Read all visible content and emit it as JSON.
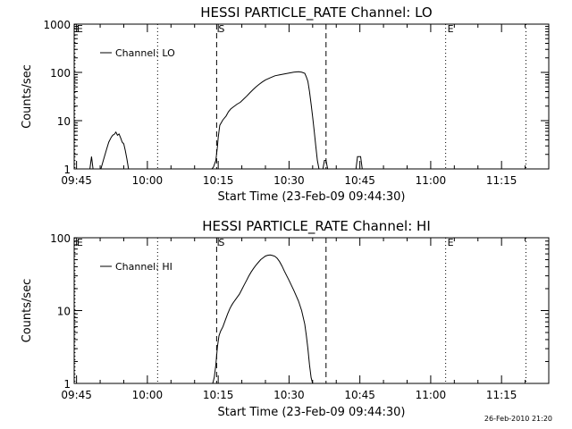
{
  "chart_data": [
    {
      "type": "line",
      "title": "HESSI PARTICLE_RATE Channel: LO",
      "xlabel": "Start Time (23-Feb-09 09:44:30)",
      "ylabel": "Counts/sec",
      "yscale": "log",
      "ylim": [
        1,
        1000
      ],
      "xlim": [
        "09:44:30",
        "11:25:00"
      ],
      "x_ticks": [
        "09:45",
        "10:00",
        "10:15",
        "10:30",
        "10:45",
        "11:00",
        "11:15"
      ],
      "y_ticks": [
        "1",
        "10",
        "100",
        "1000"
      ],
      "legend": {
        "label": "Channel: LO",
        "position": "top-left"
      },
      "markers": [
        {
          "time": "09:44:40",
          "label": "E",
          "style": "dotted"
        },
        {
          "time": "10:02:10",
          "label": "",
          "style": "dotted"
        },
        {
          "time": "10:14:40",
          "label": "S",
          "style": "dashed"
        },
        {
          "time": "10:37:50",
          "label": "",
          "style": "dashed"
        },
        {
          "time": "11:03:10",
          "label": "E",
          "style": "dotted"
        },
        {
          "time": "11:20:10",
          "label": "",
          "style": "dotted"
        }
      ],
      "series": [
        {
          "name": "Channel: LO",
          "segments": [
            [
              [
                "09:47:50",
                0.8
              ],
              [
                "09:48:10",
                1.8
              ],
              [
                "09:48:30",
                0.8
              ]
            ],
            [
              [
                "09:50:10",
                0.8
              ],
              [
                "09:50:40",
                1.5
              ],
              [
                "09:51:20",
                2.5
              ],
              [
                "09:51:50",
                3.6
              ],
              [
                "09:52:20",
                4.5
              ],
              [
                "09:52:40",
                5.0
              ],
              [
                "09:53:00",
                5.2
              ],
              [
                "09:53:20",
                5.8
              ],
              [
                "09:53:40",
                5.0
              ],
              [
                "09:54:00",
                5.3
              ],
              [
                "09:54:20",
                4.4
              ],
              [
                "09:54:40",
                3.6
              ],
              [
                "09:55:00",
                3.3
              ],
              [
                "09:55:20",
                2.4
              ],
              [
                "09:55:40",
                1.6
              ],
              [
                "09:56:00",
                0.8
              ]
            ],
            [
              [
                "10:13:40",
                0.8
              ],
              [
                "10:14:00",
                1.1
              ],
              [
                "10:14:30",
                1.5
              ],
              [
                "10:14:50",
                2.9
              ],
              [
                "10:15:00",
                4.4
              ],
              [
                "10:15:20",
                8.0
              ],
              [
                "10:16:00",
                10.4
              ],
              [
                "10:16:40",
                12.5
              ],
              [
                "10:17:10",
                15.3
              ],
              [
                "10:17:40",
                17.5
              ],
              [
                "10:18:20",
                19.7
              ],
              [
                "10:19:00",
                22.0
              ],
              [
                "10:19:40",
                24.0
              ],
              [
                "10:20:20",
                27.7
              ],
              [
                "10:21:00",
                32.0
              ],
              [
                "10:21:40",
                37.5
              ],
              [
                "10:22:20",
                43.5
              ],
              [
                "10:23:00",
                50.0
              ],
              [
                "10:23:40",
                56.5
              ],
              [
                "10:24:20",
                63.5
              ],
              [
                "10:25:00",
                70.0
              ],
              [
                "10:26:00",
                77.0
              ],
              [
                "10:27:00",
                85.0
              ],
              [
                "10:28:00",
                89.0
              ],
              [
                "10:29:00",
                93.0
              ],
              [
                "10:30:00",
                97.0
              ],
              [
                "10:31:00",
                101.0
              ],
              [
                "10:32:00",
                103.0
              ],
              [
                "10:32:40",
                101.0
              ],
              [
                "10:33:20",
                96.0
              ],
              [
                "10:33:40",
                80.0
              ],
              [
                "10:34:00",
                65.0
              ],
              [
                "10:34:20",
                40.0
              ],
              [
                "10:34:40",
                22.0
              ],
              [
                "10:35:00",
                12.0
              ],
              [
                "10:35:20",
                6.0
              ],
              [
                "10:35:40",
                3.0
              ],
              [
                "10:36:00",
                1.5
              ],
              [
                "10:36:20",
                0.8
              ]
            ],
            [
              [
                "10:37:10",
                0.8
              ],
              [
                "10:37:30",
                1.5
              ],
              [
                "10:37:50",
                1.5
              ],
              [
                "10:38:10",
                0.8
              ]
            ],
            [
              [
                "10:44:10",
                0.8
              ],
              [
                "10:44:30",
                1.8
              ],
              [
                "10:45:10",
                1.8
              ],
              [
                "10:45:30",
                0.8
              ]
            ]
          ]
        }
      ]
    },
    {
      "type": "line",
      "title": "HESSI PARTICLE_RATE Channel: HI",
      "xlabel": "Start Time (23-Feb-09 09:44:30)",
      "ylabel": "Counts/sec",
      "yscale": "log",
      "ylim": [
        1,
        100
      ],
      "xlim": [
        "09:44:30",
        "11:25:00"
      ],
      "x_ticks": [
        "09:45",
        "10:00",
        "10:15",
        "10:30",
        "10:45",
        "11:00",
        "11:15"
      ],
      "y_ticks": [
        "1",
        "10",
        "100"
      ],
      "legend": {
        "label": "Channel: HI",
        "position": "top-left"
      },
      "markers": [
        {
          "time": "09:44:40",
          "label": "E",
          "style": "dotted"
        },
        {
          "time": "10:02:10",
          "label": "",
          "style": "dotted"
        },
        {
          "time": "10:14:40",
          "label": "S",
          "style": "dashed"
        },
        {
          "time": "10:37:50",
          "label": "",
          "style": "dashed"
        },
        {
          "time": "11:03:10",
          "label": "E",
          "style": "dotted"
        },
        {
          "time": "11:20:10",
          "label": "",
          "style": "dotted"
        }
      ],
      "series": [
        {
          "name": "Channel: HI",
          "segments": [
            [
              [
                "10:13:50",
                0.8
              ],
              [
                "10:14:10",
                1.2
              ],
              [
                "10:14:30",
                1.8
              ],
              [
                "10:14:50",
                3.2
              ],
              [
                "10:15:10",
                4.5
              ],
              [
                "10:15:30",
                5.2
              ],
              [
                "10:16:00",
                6.0
              ],
              [
                "10:16:30",
                7.4
              ],
              [
                "10:17:00",
                9.0
              ],
              [
                "10:17:30",
                10.8
              ],
              [
                "10:18:00",
                12.3
              ],
              [
                "10:18:30",
                13.7
              ],
              [
                "10:19:00",
                15.2
              ],
              [
                "10:19:30",
                16.8
              ],
              [
                "10:20:00",
                19.5
              ],
              [
                "10:20:30",
                22.5
              ],
              [
                "10:21:00",
                26.0
              ],
              [
                "10:21:30",
                30.0
              ],
              [
                "10:22:00",
                34.0
              ],
              [
                "10:22:30",
                38.0
              ],
              [
                "10:23:00",
                42.0
              ],
              [
                "10:23:30",
                46.0
              ],
              [
                "10:24:00",
                50.0
              ],
              [
                "10:24:30",
                53.0
              ],
              [
                "10:25:00",
                56.0
              ],
              [
                "10:25:30",
                57.5
              ],
              [
                "10:26:00",
                58.0
              ],
              [
                "10:26:30",
                57.0
              ],
              [
                "10:27:00",
                55.5
              ],
              [
                "10:27:30",
                52.0
              ],
              [
                "10:28:00",
                47.0
              ],
              [
                "10:28:30",
                41.0
              ],
              [
                "10:29:00",
                35.0
              ],
              [
                "10:30:00",
                26.0
              ],
              [
                "10:31:00",
                19.0
              ],
              [
                "10:32:00",
                13.5
              ],
              [
                "10:32:40",
                10.0
              ],
              [
                "10:33:20",
                6.5
              ],
              [
                "10:33:40",
                4.5
              ],
              [
                "10:34:00",
                3.0
              ],
              [
                "10:34:20",
                1.8
              ],
              [
                "10:34:40",
                1.2
              ],
              [
                "10:35:00",
                0.8
              ]
            ]
          ]
        }
      ]
    }
  ],
  "footer": {
    "date_stamp": "26-Feb-2010 21:20"
  }
}
